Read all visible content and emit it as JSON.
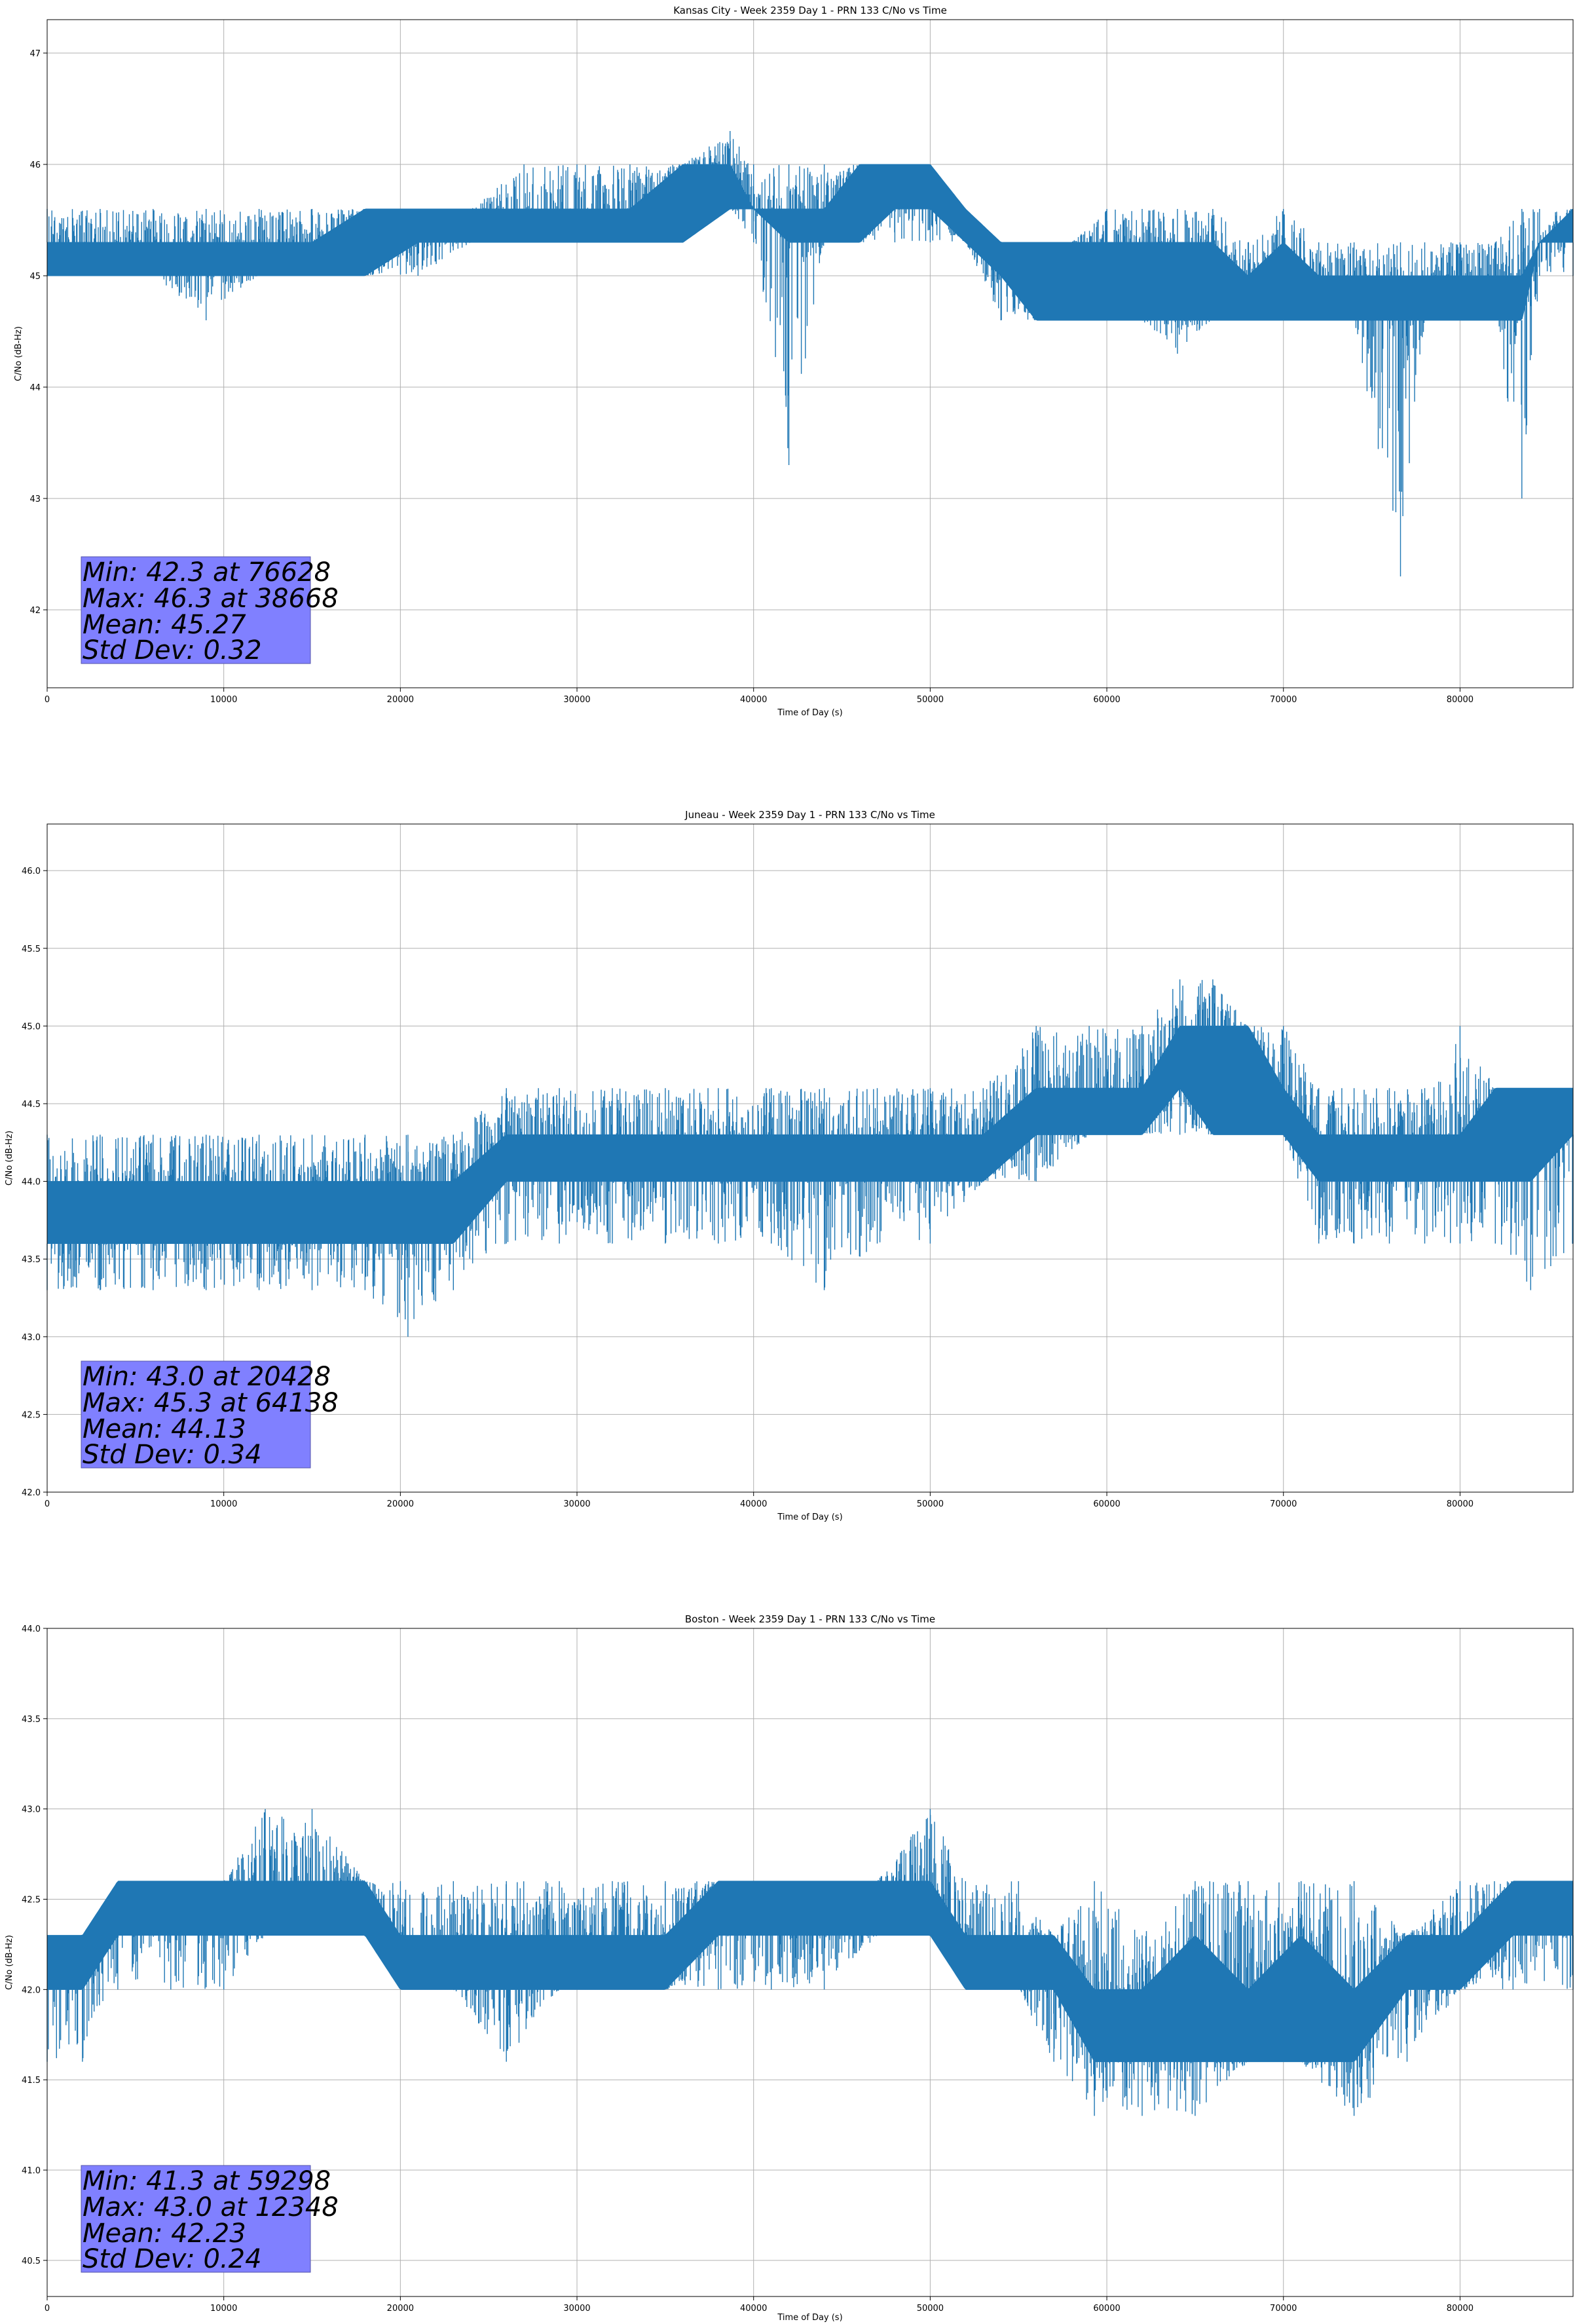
{
  "chart_data": [
    {
      "type": "line",
      "title": "Kansas City - Week 2359 Day 1 - PRN 133 C/No vs Time",
      "xlabel": "Time of Day (s)",
      "ylabel": "C/No (dB-Hz)",
      "xlim": [
        0,
        86400
      ],
      "ylim": [
        41.3,
        47.3
      ],
      "xticks": [
        0,
        10000,
        20000,
        30000,
        40000,
        50000,
        60000,
        70000,
        80000
      ],
      "yticks": [
        42,
        43,
        44,
        45,
        46,
        47
      ],
      "ytick_decimals": 0,
      "grid": true,
      "color": "#1f77b4",
      "series": [
        {
          "name": "C/No",
          "x": [
            0,
            3000,
            6000,
            9000,
            12000,
            15000,
            18000,
            21000,
            24000,
            27000,
            30000,
            33000,
            36000,
            38668,
            40000,
            42000,
            44000,
            46000,
            48000,
            50000,
            52000,
            54000,
            56000,
            58000,
            60000,
            62000,
            64000,
            66000,
            68000,
            70000,
            72000,
            74000,
            76628,
            78000,
            80000,
            82000,
            83500,
            84500,
            86400
          ],
          "low": [
            45.0,
            45.0,
            45.0,
            44.6,
            45.0,
            45.0,
            45.0,
            45.0,
            45.3,
            45.3,
            45.3,
            45.3,
            45.3,
            45.6,
            45.3,
            43.3,
            45.3,
            45.3,
            45.3,
            45.3,
            45.3,
            44.6,
            44.6,
            44.6,
            44.6,
            44.6,
            44.3,
            44.6,
            44.6,
            44.6,
            44.6,
            44.6,
            42.3,
            44.6,
            44.6,
            44.6,
            43.0,
            45.0,
            45.0
          ],
          "high": [
            45.6,
            45.6,
            45.6,
            45.6,
            45.6,
            45.6,
            45.6,
            45.6,
            45.6,
            46.0,
            46.0,
            46.0,
            46.0,
            46.3,
            46.0,
            46.0,
            46.0,
            46.0,
            46.0,
            46.0,
            45.6,
            45.3,
            45.3,
            45.3,
            45.6,
            45.6,
            45.6,
            45.6,
            45.3,
            45.6,
            45.3,
            45.3,
            45.3,
            45.3,
            45.3,
            45.3,
            45.6,
            45.6,
            45.6
          ],
          "core_low": [
            45.0,
            45.0,
            45.0,
            45.0,
            45.0,
            45.0,
            45.0,
            45.3,
            45.3,
            45.3,
            45.3,
            45.3,
            45.3,
            45.6,
            45.6,
            45.3,
            45.3,
            45.3,
            45.6,
            45.6,
            45.3,
            45.0,
            44.6,
            44.6,
            44.6,
            44.6,
            44.6,
            44.6,
            44.6,
            44.6,
            44.6,
            44.6,
            44.6,
            44.6,
            44.6,
            44.6,
            44.6,
            45.3,
            45.3
          ],
          "core_high": [
            45.3,
            45.3,
            45.3,
            45.3,
            45.3,
            45.3,
            45.6,
            45.6,
            45.6,
            45.6,
            45.6,
            45.6,
            46.0,
            46.0,
            45.6,
            45.6,
            45.6,
            46.0,
            46.0,
            46.0,
            45.6,
            45.3,
            45.3,
            45.3,
            45.3,
            45.3,
            45.3,
            45.3,
            45.0,
            45.3,
            45.0,
            45.0,
            45.0,
            45.0,
            45.0,
            45.0,
            45.0,
            45.3,
            45.6
          ]
        }
      ],
      "stats": {
        "min_line": "Min: 42.3 at 76628",
        "max_line": "Max: 46.3 at 38668",
        "mean_line": "Mean: 45.27",
        "std_line": "Std Dev: 0.32"
      }
    },
    {
      "type": "line",
      "title": "Juneau - Week 2359 Day 1 - PRN 133 C/No vs Time",
      "xlabel": "Time of Day (s)",
      "ylabel": "C/No (dB-Hz)",
      "xlim": [
        0,
        86400
      ],
      "ylim": [
        42.0,
        46.3
      ],
      "xticks": [
        0,
        10000,
        20000,
        30000,
        40000,
        50000,
        60000,
        70000,
        80000
      ],
      "yticks": [
        42.0,
        42.5,
        43.0,
        43.5,
        44.0,
        44.5,
        45.0,
        45.5,
        46.0
      ],
      "ytick_decimals": 1,
      "grid": true,
      "color": "#1f77b4",
      "series": [
        {
          "name": "C/No",
          "x": [
            0,
            3000,
            6000,
            9000,
            12000,
            15000,
            18000,
            20428,
            23000,
            26000,
            29000,
            32000,
            35000,
            38000,
            41000,
            44000,
            47000,
            50000,
            53000,
            56000,
            59000,
            62000,
            64138,
            66000,
            68000,
            70000,
            72000,
            74000,
            76000,
            78000,
            80000,
            82000,
            84000,
            86400
          ],
          "low": [
            43.3,
            43.3,
            43.3,
            43.3,
            43.3,
            43.3,
            43.3,
            43.0,
            43.3,
            43.6,
            43.6,
            43.6,
            43.6,
            43.6,
            43.6,
            43.3,
            43.6,
            43.6,
            44.0,
            44.0,
            44.3,
            44.3,
            44.3,
            44.3,
            44.3,
            44.3,
            43.6,
            43.6,
            43.6,
            43.6,
            43.6,
            43.6,
            43.3,
            43.6
          ],
          "high": [
            44.3,
            44.3,
            44.3,
            44.3,
            44.3,
            44.3,
            44.3,
            44.3,
            44.3,
            44.6,
            44.6,
            44.6,
            44.6,
            44.6,
            44.6,
            44.6,
            44.6,
            44.6,
            44.6,
            45.0,
            45.0,
            45.0,
            45.3,
            45.3,
            45.0,
            45.0,
            44.6,
            44.6,
            44.6,
            44.6,
            45.0,
            44.6,
            44.6,
            44.6
          ],
          "core_low": [
            43.6,
            43.6,
            43.6,
            43.6,
            43.6,
            43.6,
            43.6,
            43.6,
            43.6,
            44.0,
            44.0,
            44.0,
            44.0,
            44.0,
            44.0,
            44.0,
            44.0,
            44.0,
            44.0,
            44.3,
            44.3,
            44.3,
            44.6,
            44.3,
            44.3,
            44.3,
            44.0,
            44.0,
            44.0,
            44.0,
            44.0,
            44.0,
            44.0,
            44.3
          ],
          "core_high": [
            44.0,
            44.0,
            44.0,
            44.0,
            44.0,
            44.0,
            44.0,
            44.0,
            44.0,
            44.3,
            44.3,
            44.3,
            44.3,
            44.3,
            44.3,
            44.3,
            44.3,
            44.3,
            44.3,
            44.6,
            44.6,
            44.6,
            45.0,
            45.0,
            45.0,
            44.6,
            44.3,
            44.3,
            44.3,
            44.3,
            44.3,
            44.6,
            44.6,
            44.6
          ]
        }
      ],
      "stats": {
        "min_line": "Min: 43.0 at 20428",
        "max_line": "Max: 45.3 at 64138",
        "mean_line": "Mean: 44.13",
        "std_line": "Std Dev: 0.34"
      }
    },
    {
      "type": "line",
      "title": "Boston - Week 2359 Day 1 - PRN 133 C/No vs Time",
      "xlabel": "Time of Day (s)",
      "ylabel": "C/No (dB-Hz)",
      "xlim": [
        0,
        86400
      ],
      "ylim": [
        40.3,
        44.0
      ],
      "xticks": [
        0,
        10000,
        20000,
        30000,
        40000,
        50000,
        60000,
        70000,
        80000
      ],
      "yticks": [
        40.5,
        41.0,
        41.5,
        42.0,
        42.5,
        43.0,
        43.5,
        44.0
      ],
      "ytick_decimals": 1,
      "grid": true,
      "color": "#1f77b4",
      "series": [
        {
          "name": "C/No",
          "x": [
            0,
            2000,
            4000,
            7000,
            10000,
            12348,
            15000,
            18000,
            20000,
            23000,
            26000,
            29000,
            32000,
            35000,
            38000,
            41000,
            44000,
            47000,
            50000,
            52000,
            55000,
            57000,
            59298,
            62000,
            65000,
            68000,
            71000,
            74000,
            77000,
            80000,
            83000,
            86400
          ],
          "low": [
            41.6,
            41.6,
            42.0,
            42.0,
            42.0,
            42.3,
            42.3,
            42.3,
            42.0,
            42.0,
            41.6,
            42.0,
            42.0,
            42.0,
            42.0,
            42.0,
            42.0,
            42.3,
            42.3,
            42.0,
            42.0,
            41.6,
            41.3,
            41.3,
            41.3,
            41.6,
            41.6,
            41.3,
            41.6,
            42.0,
            42.0,
            42.0
          ],
          "high": [
            42.3,
            42.3,
            42.6,
            42.6,
            42.6,
            43.0,
            43.0,
            42.6,
            42.6,
            42.6,
            42.6,
            42.6,
            42.6,
            42.6,
            42.6,
            42.6,
            42.6,
            42.6,
            43.0,
            42.6,
            42.6,
            42.3,
            42.6,
            42.3,
            42.6,
            42.6,
            42.6,
            42.6,
            42.3,
            42.6,
            42.6,
            42.6
          ],
          "core_low": [
            42.0,
            42.0,
            42.3,
            42.3,
            42.3,
            42.3,
            42.3,
            42.3,
            42.0,
            42.0,
            42.0,
            42.0,
            42.0,
            42.0,
            42.3,
            42.3,
            42.3,
            42.3,
            42.3,
            42.0,
            42.0,
            42.0,
            41.6,
            41.6,
            41.6,
            41.6,
            41.6,
            41.6,
            42.0,
            42.0,
            42.3,
            42.3
          ],
          "core_high": [
            42.3,
            42.3,
            42.6,
            42.6,
            42.6,
            42.6,
            42.6,
            42.6,
            42.3,
            42.3,
            42.3,
            42.3,
            42.3,
            42.3,
            42.6,
            42.6,
            42.6,
            42.6,
            42.6,
            42.3,
            42.3,
            42.3,
            42.0,
            42.0,
            42.3,
            42.0,
            42.3,
            42.0,
            42.3,
            42.3,
            42.6,
            42.6
          ]
        }
      ],
      "stats": {
        "min_line": "Min: 41.3 at 59298",
        "max_line": "Max: 43.0 at 12348",
        "mean_line": "Mean: 42.23",
        "std_line": "Std Dev: 0.24"
      }
    }
  ]
}
